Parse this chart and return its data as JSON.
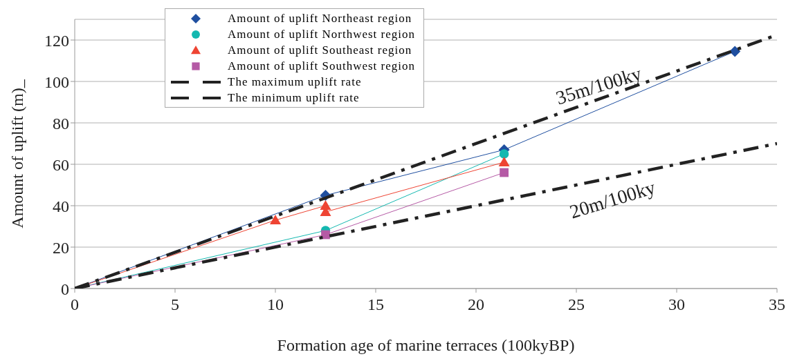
{
  "chart_data": {
    "type": "line",
    "line_style": "solid",
    "xlabel": "Formation age of marine terraces (100kyBP)",
    "ylabel": "Amount of uplift  (m)_",
    "xlim": [
      0,
      35
    ],
    "xticks": [
      0,
      5,
      10,
      15,
      20,
      25,
      30,
      35
    ],
    "ylim": [
      0,
      130
    ],
    "yticks": [
      0,
      20,
      40,
      60,
      80,
      100,
      120
    ],
    "grid": "y",
    "legend": "top left",
    "series": [
      {
        "name": "Amount of uplift Northeast region",
        "color": "#1f4fa0",
        "marker": "diamond",
        "x": [
          0,
          12.5,
          21.4,
          32.9
        ],
        "values": [
          0,
          45,
          67,
          114.5
        ]
      },
      {
        "name": "Amount of uplift Northwest region",
        "color": "#14b8b0",
        "marker": "circle",
        "x": [
          0,
          12.5,
          21.4
        ],
        "values": [
          0,
          28,
          65
        ]
      },
      {
        "name": "Amount of uplift Southeast region",
        "color": "#ee4433",
        "marker": "triangle",
        "x": [
          0,
          10,
          12.5,
          12.5,
          21.4
        ],
        "values": [
          0,
          33,
          40,
          37,
          61
        ]
      },
      {
        "name": "Amount of uplift Southwest region",
        "color": "#b55aa5",
        "marker": "square",
        "x": [
          0,
          12.5,
          21.4
        ],
        "values": [
          0,
          26,
          56
        ]
      },
      {
        "name": "The maximum uplift rate",
        "type": "line",
        "color": "#222222",
        "line_style": "dashed",
        "marker": "none",
        "x": [
          0,
          35
        ],
        "values": [
          0,
          122.5
        ]
      },
      {
        "name": "The minimum uplift rate",
        "type": "line",
        "color": "#222222",
        "line_style": "dashed",
        "marker": "none",
        "x": [
          0,
          35
        ],
        "values": [
          0,
          70
        ]
      }
    ],
    "annotations": [
      "35m/100ky",
      "20m/100ky"
    ]
  }
}
